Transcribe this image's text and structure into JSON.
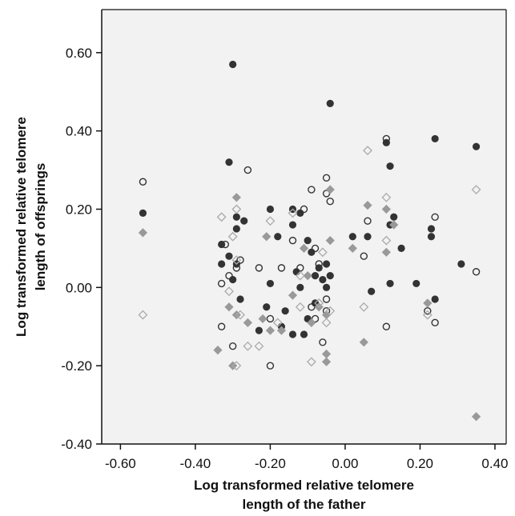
{
  "chart_data": {
    "type": "scatter",
    "xlabel": [
      "Log transformed relative telomere",
      "length of the father"
    ],
    "ylabel": [
      "Log transformed relative telomere",
      "length of offsprings"
    ],
    "xlim": [
      -0.65,
      0.43
    ],
    "ylim": [
      -0.4,
      0.71
    ],
    "xticks": [
      -0.6,
      -0.4,
      -0.2,
      0.0,
      0.2,
      0.4
    ],
    "yticks": [
      -0.4,
      -0.2,
      0.0,
      0.2,
      0.4,
      0.6
    ],
    "xtick_labels": [
      "-0.60",
      "-0.40",
      "-0.20",
      "0.00",
      "0.20",
      "0.40"
    ],
    "ytick_labels": [
      "-0.40",
      "-0.20",
      "0.00",
      "0.20",
      "0.40",
      "0.60"
    ],
    "background": "#f2f2f2",
    "grid": false,
    "series": [
      {
        "marker": "filled-circle",
        "color": "#333333",
        "points": [
          [
            -0.54,
            0.19
          ],
          [
            -0.3,
            0.57
          ],
          [
            -0.04,
            0.47
          ],
          [
            -0.31,
            0.32
          ],
          [
            -0.29,
            0.18
          ],
          [
            -0.27,
            0.17
          ],
          [
            -0.29,
            0.15
          ],
          [
            -0.33,
            0.11
          ],
          [
            -0.31,
            0.08
          ],
          [
            -0.29,
            0.06
          ],
          [
            -0.33,
            0.06
          ],
          [
            -0.3,
            0.02
          ],
          [
            -0.28,
            -0.03
          ],
          [
            -0.2,
            0.2
          ],
          [
            -0.18,
            0.13
          ],
          [
            -0.2,
            0.01
          ],
          [
            -0.21,
            -0.05
          ],
          [
            -0.23,
            -0.11
          ],
          [
            -0.17,
            -0.1
          ],
          [
            -0.14,
            0.2
          ],
          [
            -0.12,
            0.19
          ],
          [
            -0.14,
            0.16
          ],
          [
            -0.1,
            0.12
          ],
          [
            -0.13,
            0.04
          ],
          [
            -0.16,
            -0.06
          ],
          [
            -0.14,
            -0.12
          ],
          [
            -0.11,
            -0.12
          ],
          [
            -0.09,
            0.09
          ],
          [
            -0.07,
            0.05
          ],
          [
            -0.05,
            0.06
          ],
          [
            -0.08,
            0.03
          ],
          [
            -0.06,
            0.02
          ],
          [
            -0.04,
            0.03
          ],
          [
            -0.05,
            0.0
          ],
          [
            -0.08,
            -0.04
          ],
          [
            -0.12,
            0.0
          ],
          [
            -0.1,
            -0.08
          ],
          [
            0.02,
            0.13
          ],
          [
            0.06,
            0.13
          ],
          [
            0.07,
            -0.01
          ],
          [
            0.11,
            0.37
          ],
          [
            0.12,
            0.31
          ],
          [
            0.12,
            0.16
          ],
          [
            0.13,
            0.18
          ],
          [
            0.15,
            0.1
          ],
          [
            0.12,
            0.01
          ],
          [
            0.19,
            0.01
          ],
          [
            0.24,
            0.38
          ],
          [
            0.23,
            0.15
          ],
          [
            0.23,
            0.13
          ],
          [
            0.24,
            -0.03
          ],
          [
            0.31,
            0.06
          ],
          [
            0.35,
            0.36
          ]
        ]
      },
      {
        "marker": "open-circle",
        "color": "#333333",
        "points": [
          [
            -0.54,
            0.27
          ],
          [
            -0.26,
            0.3
          ],
          [
            -0.32,
            0.11
          ],
          [
            -0.31,
            0.03
          ],
          [
            -0.29,
            0.05
          ],
          [
            -0.28,
            0.07
          ],
          [
            -0.33,
            0.01
          ],
          [
            -0.33,
            -0.1
          ],
          [
            -0.3,
            -0.15
          ],
          [
            -0.23,
            0.05
          ],
          [
            -0.2,
            -0.08
          ],
          [
            -0.2,
            -0.2
          ],
          [
            -0.17,
            0.05
          ],
          [
            -0.14,
            0.12
          ],
          [
            -0.11,
            0.2
          ],
          [
            -0.12,
            0.05
          ],
          [
            -0.09,
            0.25
          ],
          [
            -0.08,
            0.1
          ],
          [
            -0.07,
            0.06
          ],
          [
            -0.09,
            -0.05
          ],
          [
            -0.08,
            -0.08
          ],
          [
            -0.06,
            -0.14
          ],
          [
            -0.05,
            0.28
          ],
          [
            -0.05,
            0.24
          ],
          [
            -0.04,
            0.22
          ],
          [
            -0.05,
            -0.03
          ],
          [
            -0.05,
            -0.06
          ],
          [
            0.05,
            0.08
          ],
          [
            0.06,
            0.17
          ],
          [
            0.11,
            0.38
          ],
          [
            0.11,
            -0.1
          ],
          [
            0.24,
            0.18
          ],
          [
            0.22,
            -0.06
          ],
          [
            0.24,
            -0.09
          ],
          [
            0.35,
            0.04
          ]
        ]
      },
      {
        "marker": "filled-diamond",
        "color": "#999999",
        "points": [
          [
            -0.54,
            0.14
          ],
          [
            -0.29,
            0.23
          ],
          [
            -0.31,
            -0.05
          ],
          [
            -0.29,
            -0.07
          ],
          [
            -0.34,
            -0.16
          ],
          [
            -0.3,
            -0.2
          ],
          [
            -0.26,
            -0.09
          ],
          [
            -0.21,
            0.13
          ],
          [
            -0.22,
            -0.08
          ],
          [
            -0.2,
            -0.11
          ],
          [
            -0.17,
            -0.11
          ],
          [
            -0.14,
            -0.02
          ],
          [
            -0.11,
            0.1
          ],
          [
            -0.1,
            0.03
          ],
          [
            -0.07,
            -0.05
          ],
          [
            -0.09,
            -0.09
          ],
          [
            -0.05,
            -0.07
          ],
          [
            -0.04,
            0.25
          ],
          [
            -0.04,
            0.12
          ],
          [
            -0.05,
            -0.17
          ],
          [
            -0.05,
            -0.19
          ],
          [
            0.02,
            0.1
          ],
          [
            0.05,
            -0.14
          ],
          [
            0.06,
            0.21
          ],
          [
            0.11,
            0.2
          ],
          [
            0.11,
            0.09
          ],
          [
            0.13,
            0.16
          ],
          [
            0.22,
            -0.04
          ],
          [
            0.35,
            -0.33
          ]
        ]
      },
      {
        "marker": "open-diamond",
        "color": "#aaaaaa",
        "points": [
          [
            -0.54,
            -0.07
          ],
          [
            -0.33,
            0.18
          ],
          [
            -0.29,
            0.2
          ],
          [
            -0.3,
            0.13
          ],
          [
            -0.29,
            0.07
          ],
          [
            -0.31,
            -0.01
          ],
          [
            -0.28,
            -0.07
          ],
          [
            -0.29,
            -0.2
          ],
          [
            -0.26,
            -0.15
          ],
          [
            -0.23,
            -0.15
          ],
          [
            -0.2,
            0.17
          ],
          [
            -0.18,
            -0.09
          ],
          [
            -0.14,
            0.19
          ],
          [
            -0.12,
            0.03
          ],
          [
            -0.12,
            -0.05
          ],
          [
            -0.09,
            -0.19
          ],
          [
            -0.07,
            -0.04
          ],
          [
            -0.06,
            0.09
          ],
          [
            -0.04,
            -0.06
          ],
          [
            -0.05,
            -0.09
          ],
          [
            0.06,
            0.35
          ],
          [
            0.05,
            -0.05
          ],
          [
            0.11,
            0.23
          ],
          [
            0.11,
            0.12
          ],
          [
            0.22,
            -0.07
          ],
          [
            0.35,
            0.25
          ]
        ]
      }
    ]
  }
}
